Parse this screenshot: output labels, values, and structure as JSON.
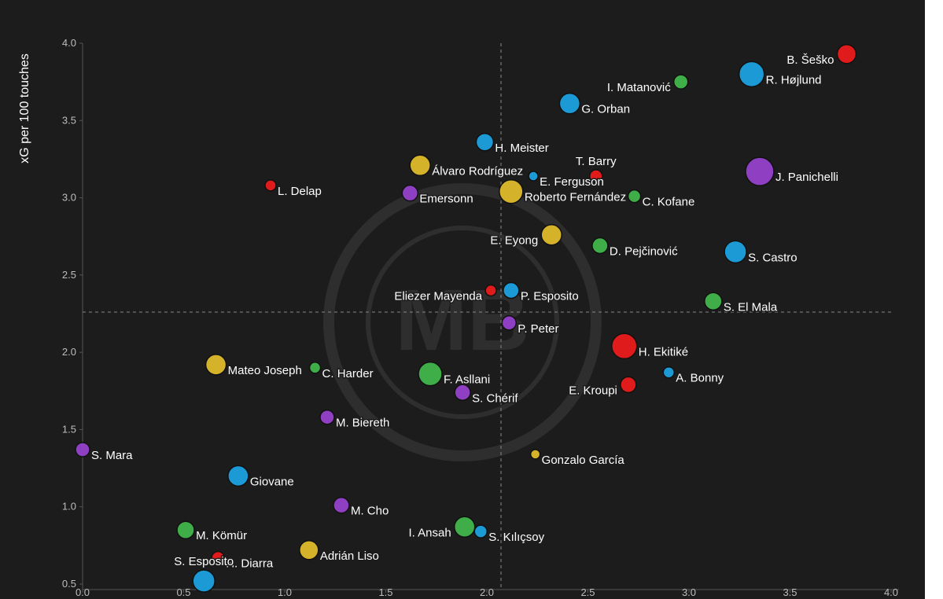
{
  "chart_data": {
    "type": "scatter",
    "y_label": "xG per 100 touches",
    "labels": [
      "B. Šeško",
      "R. Højlund",
      "I. Matanović",
      "G. Orban",
      "H. Meister",
      "Álvaro Rodríguez",
      "E. Ferguson",
      "T. Barry",
      "J. Panichelli",
      "L. Delap",
      "Emersonn",
      "Roberto Fernández",
      "C. Kofane",
      "E. Eyong",
      "D. Pejčinović",
      "S. Castro",
      "Eliezer Mayenda",
      "P. Esposito",
      "S. El Mala",
      "P. Peter",
      "H. Ekitiké",
      "A. Bonny",
      "E. Kroupi",
      "Mateo Joseph",
      "C. Harder",
      "F. Asllani",
      "S. Chérif",
      "M. Biereth",
      "S. Mara",
      "Gonzalo García",
      "Giovane",
      "M. Cho",
      "M. Kömür",
      "I. Ansah",
      "S. Kılıçsoy",
      "Adrián Liso",
      "H. Diarra",
      "S. Esposito"
    ],
    "x": [
      3.78,
      3.31,
      2.96,
      2.41,
      1.99,
      1.67,
      2.23,
      2.54,
      3.35,
      0.93,
      1.62,
      2.12,
      2.73,
      2.32,
      2.56,
      3.23,
      2.02,
      2.12,
      3.12,
      2.11,
      2.68,
      2.9,
      2.7,
      0.66,
      1.15,
      1.72,
      1.88,
      1.21,
      0.0,
      2.24,
      0.77,
      1.28,
      0.51,
      1.89,
      1.97,
      1.12,
      0.67,
      0.6
    ],
    "y": [
      3.93,
      3.8,
      3.75,
      3.61,
      3.36,
      3.21,
      3.14,
      3.14,
      3.17,
      3.08,
      3.03,
      3.04,
      3.01,
      2.76,
      2.69,
      2.65,
      2.4,
      2.4,
      2.33,
      2.19,
      2.04,
      1.87,
      1.79,
      1.92,
      1.9,
      1.86,
      1.74,
      1.58,
      1.37,
      1.34,
      1.2,
      1.01,
      0.85,
      0.87,
      0.84,
      0.72,
      0.67,
      0.52
    ],
    "sizes": [
      12,
      16,
      9,
      13,
      11,
      13,
      6,
      8,
      18,
      7,
      10,
      15,
      8,
      13,
      10,
      14,
      7,
      10,
      11,
      9,
      16,
      7,
      10,
      13,
      7,
      15,
      10,
      9,
      9,
      6,
      13,
      10,
      11,
      13,
      8,
      12,
      8,
      14
    ],
    "colors": [
      "#e01b1b",
      "#1b9ad6",
      "#3fae49",
      "#1b9ad6",
      "#1b9ad6",
      "#d4b22a",
      "#1b9ad6",
      "#e01b1b",
      "#8e3fc2",
      "#e01b1b",
      "#8e3fc2",
      "#d4b22a",
      "#3fae49",
      "#d4b22a",
      "#3fae49",
      "#1b9ad6",
      "#e01b1b",
      "#1b9ad6",
      "#3fae49",
      "#8e3fc2",
      "#e01b1b",
      "#1b9ad6",
      "#e01b1b",
      "#d4b22a",
      "#3fae49",
      "#3fae49",
      "#8e3fc2",
      "#8e3fc2",
      "#8e3fc2",
      "#d4b22a",
      "#1b9ad6",
      "#8e3fc2",
      "#3fae49",
      "#3fae49",
      "#1b9ad6",
      "#d4b22a",
      "#e01b1b",
      "#1b9ad6"
    ],
    "x_ref": 2.07,
    "y_ref": 2.26,
    "xlim": [
      0,
      4
    ],
    "ylim": [
      0.5,
      4
    ],
    "xticks": [
      {
        "value": 0,
        "label": "0.0"
      },
      0.5,
      {
        "value": 1,
        "label": "1.0"
      },
      1.5,
      {
        "value": 2,
        "label": "2.0"
      },
      2.5,
      {
        "value": 3,
        "label": "3.0"
      },
      3.5,
      {
        "value": 4,
        "label": "4.0"
      }
    ],
    "yticks": [
      0.5,
      {
        "value": 1,
        "label": "1.0"
      },
      1.5,
      {
        "value": 2,
        "label": "2.0"
      },
      2.5,
      {
        "value": 3,
        "label": "3.0"
      },
      3.5,
      {
        "value": 4,
        "label": "4.0"
      }
    ]
  }
}
